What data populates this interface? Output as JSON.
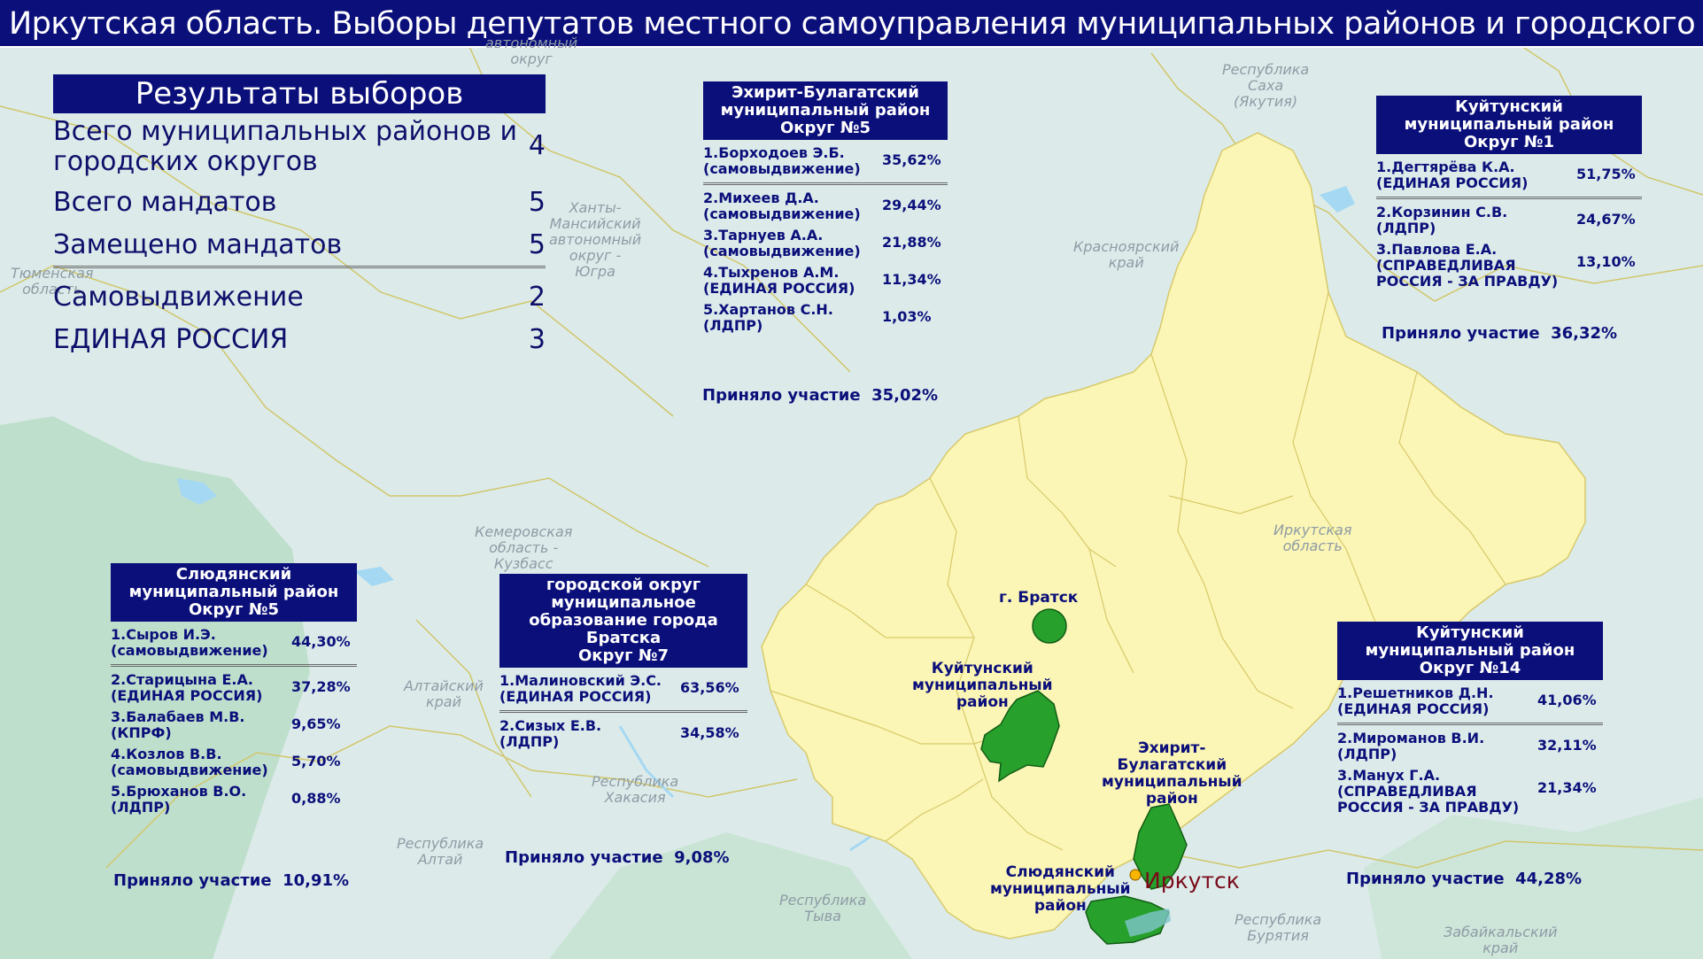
{
  "title": "Иркутская область. Выборы депутатов местного самоуправления муниципальных районов и городского округа",
  "region_labels": {
    "yamal": "автономный\nокруг",
    "yakutia": "Республика\nСаха\n(Якутия)",
    "krasnoyarsk": "Красноярский\nкрай",
    "khanty": "Ханты-\nМансийский\nавтономный\nокруг -\nЮгра",
    "tyumen": "Тюменская\nобласть",
    "irkutsk_obl": "Иркутская\nобласть",
    "kemerovo": "Кемеровская\nобласть -\nКузбасс",
    "altai_krai": "Алтайский\nкрай",
    "khakassia": "Республика\nХакасия",
    "altai_rep": "Республика\nАлтай",
    "tyva": "Республика\nТыва",
    "buryatia": "Республика\nБурятия",
    "zabaikalsky": "Забайкальский\nкрай"
  },
  "summary": {
    "header": "Результаты выборов",
    "rows": [
      {
        "label": "Всего муниципальных районов и\nгородских округов",
        "value": "4"
      },
      {
        "label": "Всего мандатов",
        "value": "5"
      },
      {
        "label": "Замещено мандатов",
        "value": "5"
      }
    ],
    "parties": [
      {
        "label": "Самовыдвижение",
        "value": "2"
      },
      {
        "label": "ЕДИНАЯ РОССИЯ",
        "value": "3"
      }
    ]
  },
  "districts": {
    "ehirit": {
      "header": "Эхирит-Булагатский\nмуниципальный район\nОкруг №5",
      "candidates": [
        {
          "name": "1.Борходоев Э.Б.\n(самовыдвижение)",
          "pct": "35,62%"
        },
        {
          "name": "2.Михеев Д.А.\n(самовыдвижение)",
          "pct": "29,44%"
        },
        {
          "name": "3.Тарнуев А.А.\n(самовыдвижение)",
          "pct": "21,88%"
        },
        {
          "name": "4.Тыхренов А.М.\n(ЕДИНАЯ РОССИЯ)",
          "pct": "11,34%"
        },
        {
          "name": "5.Хартанов С.Н.\n(ЛДПР)",
          "pct": "1,03%"
        }
      ],
      "turnout_label": "Приняло участие",
      "turnout": "35,02%"
    },
    "kuitun1": {
      "header": "Куйтунский\nмуниципальный район\nОкруг №1",
      "candidates": [
        {
          "name": "1.Дегтярёва К.А.\n(ЕДИНАЯ РОССИЯ)",
          "pct": "51,75%"
        },
        {
          "name": "2.Корзинин С.В.\n(ЛДПР)",
          "pct": "24,67%"
        },
        {
          "name": "3.Павлова Е.А.\n(СПРАВЕДЛИВАЯ\nРОССИЯ - ЗА ПРАВДУ)",
          "pct": "13,10%"
        }
      ],
      "turnout_label": "Приняло участие",
      "turnout": "36,32%"
    },
    "slyudyanka": {
      "header": "Слюдянский\nмуниципальный район\nОкруг №5",
      "candidates": [
        {
          "name": "1.Сыров И.Э.\n(самовыдвижение)",
          "pct": "44,30%"
        },
        {
          "name": "2.Старицына Е.А.\n(ЕДИНАЯ РОССИЯ)",
          "pct": "37,28%"
        },
        {
          "name": "3.Балабаев М.В.\n(КПРФ)",
          "pct": "9,65%"
        },
        {
          "name": "4.Козлов В.В.\n(самовыдвижение)",
          "pct": "5,70%"
        },
        {
          "name": "5.Брюханов В.О.\n(ЛДПР)",
          "pct": "0,88%"
        }
      ],
      "turnout_label": "Приняло участие",
      "turnout": "10,91%"
    },
    "bratsk": {
      "header": "городской округ\nмуниципальное\nобразование города\nБратска\nОкруг №7",
      "candidates": [
        {
          "name": "1.Малиновский Э.С.\n(ЕДИНАЯ РОССИЯ)",
          "pct": "63,56%"
        },
        {
          "name": "2.Сизых Е.В.\n(ЛДПР)",
          "pct": "34,58%"
        }
      ],
      "turnout_label": "Приняло участие",
      "turnout": "9,08%"
    },
    "kuitun14": {
      "header": "Куйтунский\nмуниципальный район\nОкруг №14",
      "candidates": [
        {
          "name": "1.Решетников Д.Н.\n(ЕДИНАЯ РОССИЯ)",
          "pct": "41,06%"
        },
        {
          "name": "2.Миромaнов В.И.\n(ЛДПР)",
          "pct": "32,11%"
        },
        {
          "name": "3.Манух Г.А.\n(СПРАВЕДЛИВАЯ\nРОССИЯ - ЗА ПРАВДУ)",
          "pct": "21,34%"
        }
      ],
      "turnout_label": "Приняло участие",
      "turnout": "44,28%"
    }
  },
  "map_labels": {
    "bratsk": "г. Братск",
    "kuitun": "Куйтунский\nмуниципальный\nрайон",
    "ehirit": "Эхирит-\nБулагатский\nмуниципальный\nрайон",
    "slyudyanka": "Слюдянский\nмуниципальный\nрайон",
    "irkutsk_city": "Иркутск"
  },
  "colors": {
    "header_bg": "#0b0f7a",
    "text": "#0b0f7a",
    "region_fill": "#fbf6b5",
    "highlight_fill": "#27a12c",
    "water": "#a5d8f2",
    "background": "#dcebea"
  }
}
